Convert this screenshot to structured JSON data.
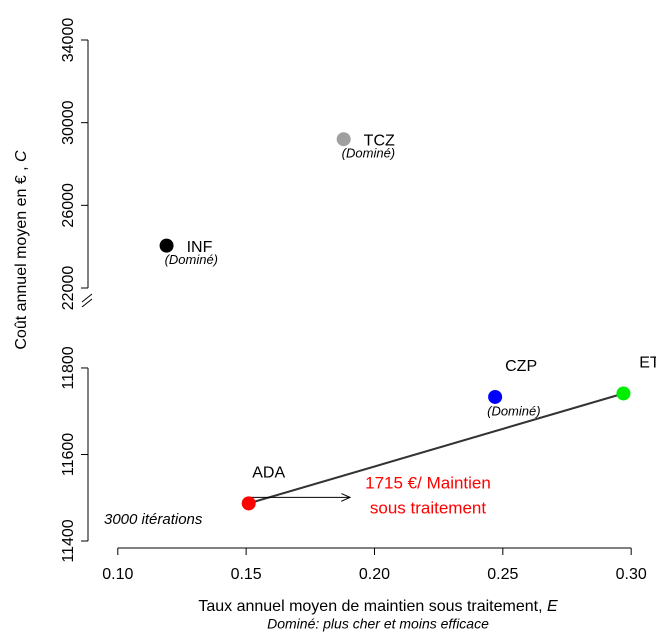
{
  "chart_data": {
    "type": "scatter",
    "x_label": "Taux annuel moyen de maintien sous traitement,",
    "x_label_var": "E",
    "y_label": "Coût annuel moyen en € ,",
    "y_label_var": "C",
    "subtitle": "Dominé: plus cher et moins efficace",
    "labels": [
      "ADA",
      "CZP",
      "ET",
      "TCZ",
      "INF"
    ],
    "x": [
      0.151,
      0.247,
      0.297,
      0.188,
      0.119
    ],
    "y": [
      11487,
      11733,
      11741,
      29200,
      24050
    ],
    "colors": [
      "#ff0000",
      "#0000ff",
      "#00ee00",
      "#a0a0a0",
      "#000000"
    ],
    "point_notes": [
      null,
      "(Dominé)",
      null,
      "(Dominé)",
      "(Dominé)"
    ],
    "icer_label": [
      "1715 €/ Maintien",
      "sous traitement"
    ],
    "icer_color": "#ff0000",
    "iterations_label": "3000 itérations",
    "xlim": [
      0.088,
      0.305
    ],
    "xticks": [
      {
        "value": 0.1,
        "label": "0.10"
      },
      0.15,
      {
        "value": 0.2,
        "label": "0.20"
      },
      0.25,
      {
        "value": 0.3,
        "label": "0.30"
      }
    ],
    "ylim_lower": [
      11385,
      11900
    ],
    "yticks_lower": [
      11400,
      11600,
      11800
    ],
    "ylim_upper": [
      21700,
      34000
    ],
    "yticks_upper": [
      22000,
      26000,
      30000,
      34000
    ]
  }
}
